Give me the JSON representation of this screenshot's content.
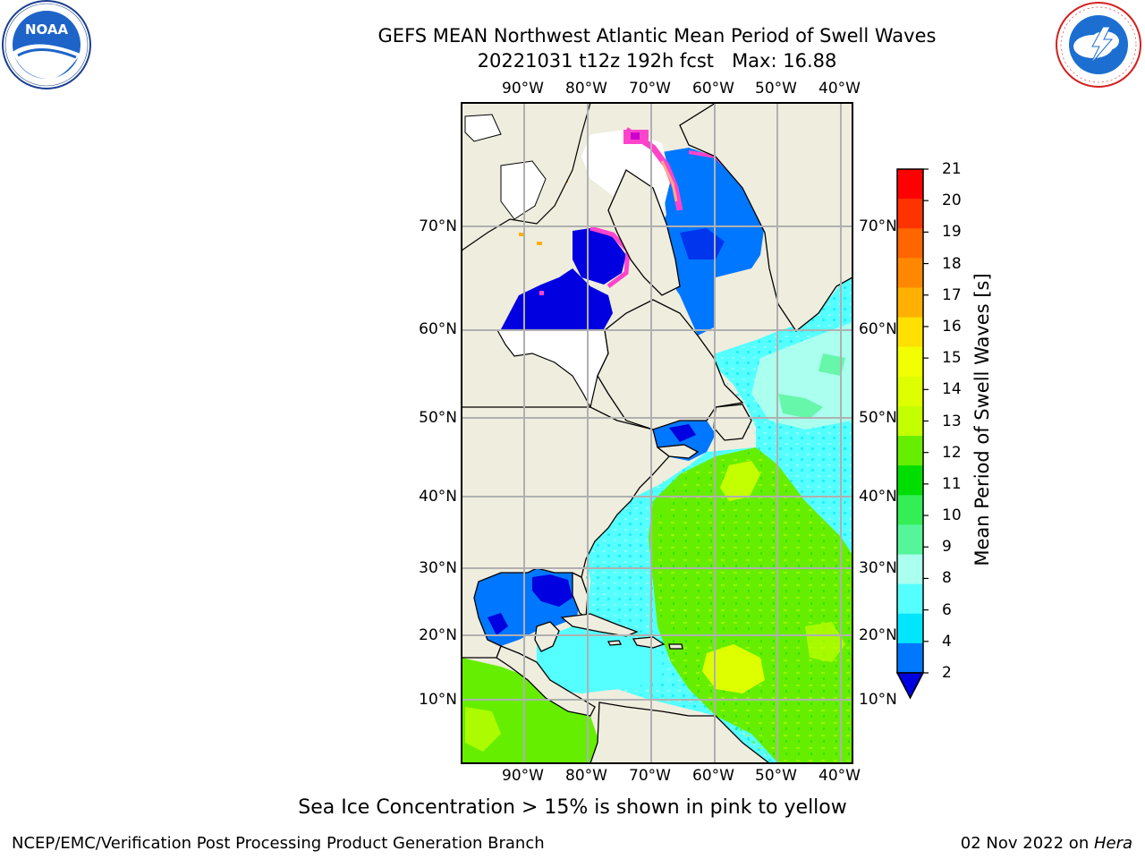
{
  "header": {
    "title_line1": "GEFS MEAN Northwest Atlantic Mean Period of Swell Waves",
    "title_line2": "20221031 t12z 192h fcst   Max: 16.88"
  },
  "logos": {
    "noaa_text": "NOAA",
    "noaa_ring_text": "NATIONAL OCEANIC AND ATMOSPHERIC ADMINISTRATION · U.S. DEPARTMENT OF COMMERCE",
    "nws_ring_text": "NATIONAL WEATHER SERVICE"
  },
  "map": {
    "lon_labels": [
      "90°W",
      "80°W",
      "70°W",
      "60°W",
      "50°W",
      "40°W"
    ],
    "lat_labels": [
      "70°N",
      "60°N",
      "50°N",
      "40°N",
      "30°N",
      "20°N",
      "10°N"
    ],
    "land_color": "#efedde",
    "grid_color": "#b0b0b0"
  },
  "colorbar": {
    "label": "Mean Period of Swell Waves [s]",
    "ticks": [
      "21",
      "20",
      "19",
      "18",
      "17",
      "16",
      "15",
      "14",
      "13",
      "12",
      "11",
      "10",
      "9",
      "8",
      "6",
      "4",
      "2"
    ],
    "colors": [
      "#ff0000",
      "#ff3300",
      "#ff6600",
      "#ff8800",
      "#ffb000",
      "#ffe000",
      "#f2ff00",
      "#ddff00",
      "#c4ff00",
      "#66ee00",
      "#00dd00",
      "#33ee55",
      "#55f599",
      "#aaffee",
      "#55ffff",
      "#00e6ff",
      "#0077ff",
      "#0000e0"
    ]
  },
  "caption": "Sea Ice Concentration > 15% is shown in pink to yellow",
  "footer": {
    "left": "NCEP/EMC/Verification Post Processing Product Generation Branch",
    "right_prefix": "02 Nov 2022 on ",
    "right_host": "Hera"
  }
}
